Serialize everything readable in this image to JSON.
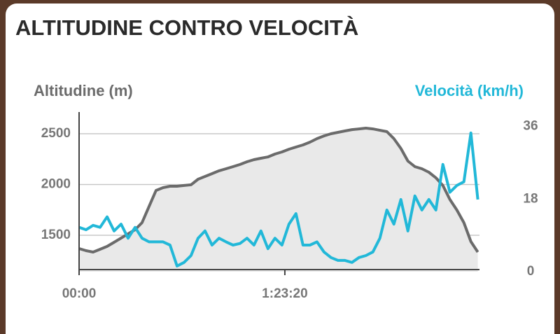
{
  "chart_data": {
    "type": "line",
    "title": "ALTITUDINE CONTRO VELOCITÀ",
    "x": [
      0,
      170,
      340,
      510,
      680,
      850,
      1020,
      1190,
      1360,
      1530,
      1700,
      1870,
      2040,
      2210,
      2380,
      2550,
      2720,
      2890,
      3060,
      3230,
      3400,
      3570,
      3740,
      3910,
      4080,
      4250,
      4420,
      4590,
      4760,
      4930,
      5100,
      5270,
      5440,
      5610,
      5780,
      5950,
      6120,
      6290,
      6460,
      6630,
      6800,
      6970,
      7140,
      7310,
      7480,
      7650,
      7820,
      7990,
      8160,
      8330,
      8500,
      8670,
      8840,
      9010,
      9180,
      9350,
      9520,
      9690
    ],
    "xlim": [
      0,
      9730
    ],
    "xticks": [
      {
        "value": 0,
        "label": "00:00"
      },
      {
        "value": 5000,
        "label": "1:23:20"
      }
    ],
    "ylim": [
      1141,
      2714
    ],
    "yticks": [
      1500,
      2000,
      2500
    ],
    "y2lim": [
      0,
      39.6
    ],
    "y2ticks": [
      0,
      18,
      36
    ],
    "grid": true,
    "series": [
      {
        "name": "Altitudine (m)",
        "color": "#6b6b6b",
        "area_color": "#e9e9e9",
        "values": [
          1369,
          1348,
          1334,
          1362,
          1390,
          1431,
          1472,
          1514,
          1555,
          1624,
          1783,
          1941,
          1969,
          1983,
          1983,
          1990,
          1997,
          2052,
          2079,
          2107,
          2135,
          2155,
          2176,
          2197,
          2224,
          2245,
          2259,
          2272,
          2300,
          2321,
          2348,
          2369,
          2390,
          2417,
          2452,
          2479,
          2500,
          2514,
          2528,
          2541,
          2548,
          2555,
          2548,
          2534,
          2521,
          2452,
          2355,
          2231,
          2176,
          2155,
          2121,
          2066,
          1990,
          1852,
          1748,
          1624,
          1438,
          1334
        ]
      },
      {
        "name": "Velocità (km/h)",
        "color": "#22b8d8",
        "axis": "y2",
        "values": [
          11.0,
          10.4,
          11.5,
          11.0,
          13.6,
          10.1,
          11.8,
          8.3,
          11.0,
          8.3,
          7.4,
          7.4,
          7.4,
          6.6,
          1.4,
          2.3,
          4.0,
          8.3,
          10.1,
          6.6,
          8.3,
          7.4,
          6.6,
          7.0,
          8.3,
          6.6,
          10.1,
          5.7,
          8.3,
          6.6,
          11.8,
          14.4,
          6.6,
          6.6,
          7.4,
          4.9,
          3.5,
          2.8,
          2.8,
          2.3,
          3.5,
          4.0,
          4.9,
          8.3,
          15.3,
          11.8,
          17.9,
          10.1,
          18.8,
          15.3,
          17.9,
          15.3,
          26.6,
          19.7,
          21.4,
          22.3,
          34.4,
          17.9
        ]
      }
    ]
  }
}
